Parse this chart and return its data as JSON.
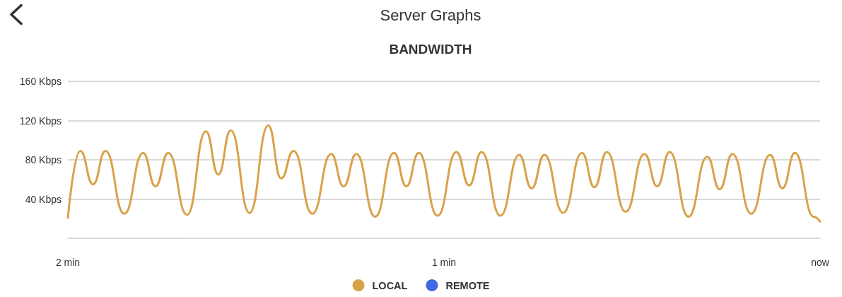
{
  "chart_data": {
    "type": "line",
    "title": "Server Graphs",
    "subtitle": "BANDWIDTH",
    "x": [
      2,
      1.967,
      1.933,
      1.9,
      1.85,
      1.8,
      1.767,
      1.733,
      1.683,
      1.633,
      1.6,
      1.567,
      1.517,
      1.467,
      1.433,
      1.4,
      1.35,
      1.3,
      1.267,
      1.233,
      1.183,
      1.133,
      1.1,
      1.067,
      1.017,
      0.967,
      0.933,
      0.9,
      0.85,
      0.8,
      0.767,
      0.733,
      0.683,
      0.633,
      0.6,
      0.567,
      0.517,
      0.467,
      0.433,
      0.4,
      0.35,
      0.3,
      0.267,
      0.233,
      0.183,
      0.133,
      0.1,
      0.067,
      0.017,
      0
    ],
    "series": [
      {
        "name": "LOCAL",
        "color": "#d9a24a",
        "values": [
          21,
          89,
          55,
          89,
          25,
          87,
          53,
          87,
          24,
          109,
          65,
          110,
          26,
          115,
          61,
          89,
          25,
          86,
          53,
          86,
          22,
          87,
          53,
          87,
          23,
          88,
          54,
          88,
          23,
          85,
          51,
          85,
          26,
          87,
          52,
          88,
          27,
          86,
          53,
          88,
          22,
          83,
          50,
          86,
          25,
          85,
          51,
          87,
          22,
          17
        ]
      },
      {
        "name": "REMOTE",
        "color": "#4169e1",
        "values": [
          null,
          null,
          null,
          null,
          null,
          null,
          null,
          null,
          null,
          null,
          null,
          null,
          null,
          null,
          null,
          null,
          null,
          null,
          null,
          null,
          null,
          null,
          null,
          null,
          null,
          null,
          null,
          null,
          null,
          null,
          null,
          null,
          null,
          null,
          null,
          null,
          null,
          null,
          null,
          null,
          null,
          null,
          null,
          null,
          null,
          null,
          null,
          null,
          null,
          null
        ]
      }
    ],
    "xlim": [
      2,
      0
    ],
    "xticks": [
      {
        "value": 2,
        "label": "2 min"
      },
      {
        "value": 1,
        "label": "1 min"
      },
      {
        "value": 0,
        "label": "now"
      }
    ],
    "ylim": [
      0,
      160
    ],
    "yticks": [
      {
        "value": 40,
        "label": "40 Kbps"
      },
      {
        "value": 80,
        "label": "80 Kbps"
      },
      {
        "value": 120,
        "label": "120 Kbps"
      },
      {
        "value": 160,
        "label": "160 Kbps"
      }
    ],
    "grid": "y",
    "legend": "bottom"
  }
}
